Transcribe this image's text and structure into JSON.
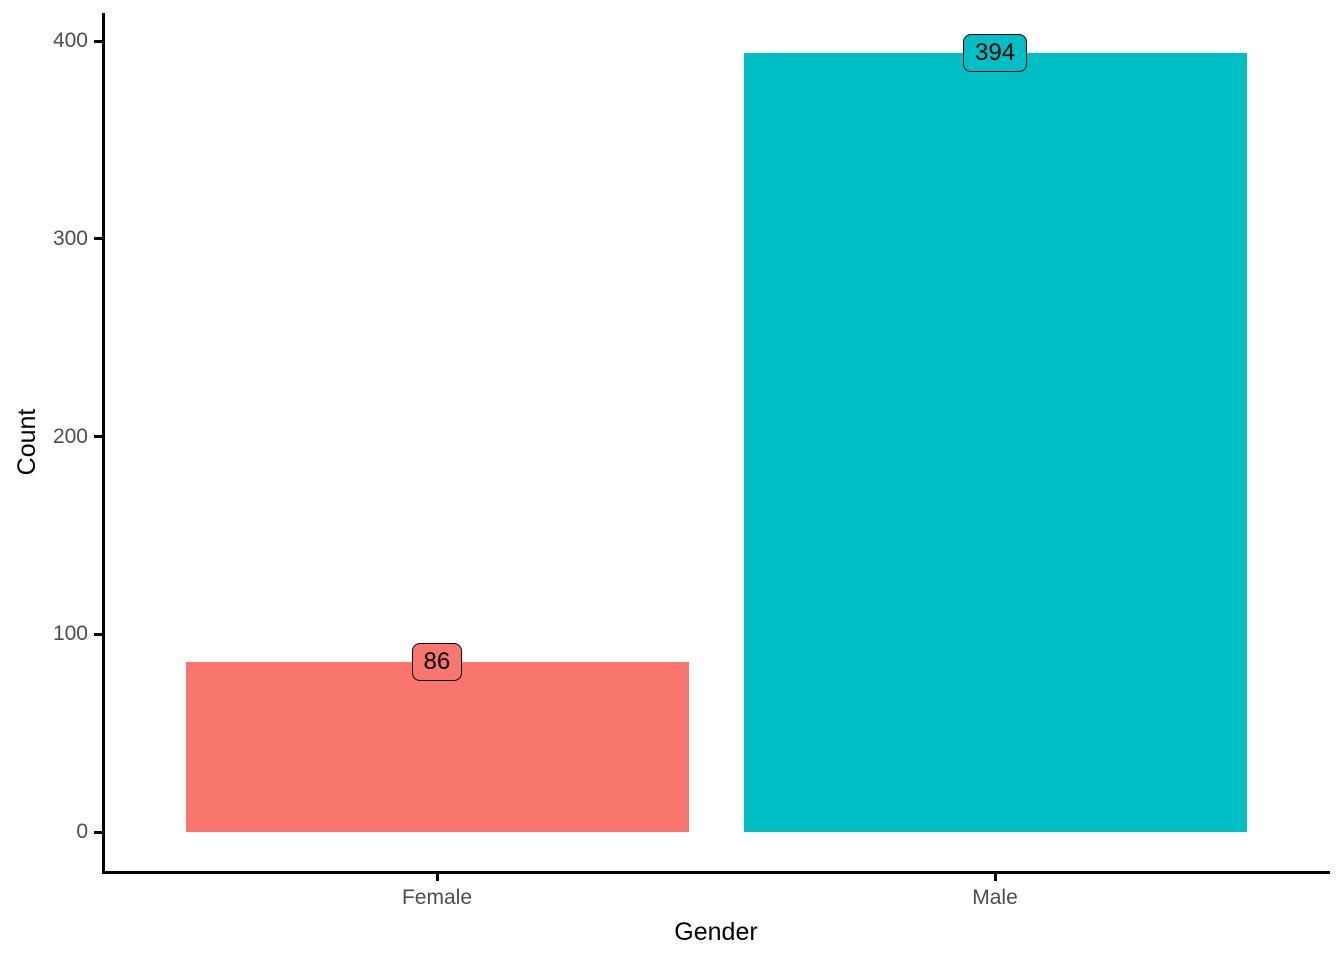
{
  "chart_data": {
    "type": "bar",
    "xlabel": "Gender",
    "ylabel": "Count",
    "categories": [
      "Female",
      "Male"
    ],
    "values": [
      86,
      394
    ],
    "bar_labels": [
      "86",
      "394"
    ],
    "series_colors": [
      "#F8766D",
      "#00BFC4"
    ],
    "ylim": [
      0,
      400
    ],
    "yticks": [
      0,
      100,
      200,
      300,
      400
    ],
    "grid": false,
    "legend": "none",
    "background_color": "#FFFFFF",
    "axis_line_color": "#000000",
    "axis_text_color": "#4d4d4d",
    "value_label_text_color": "#000000"
  }
}
